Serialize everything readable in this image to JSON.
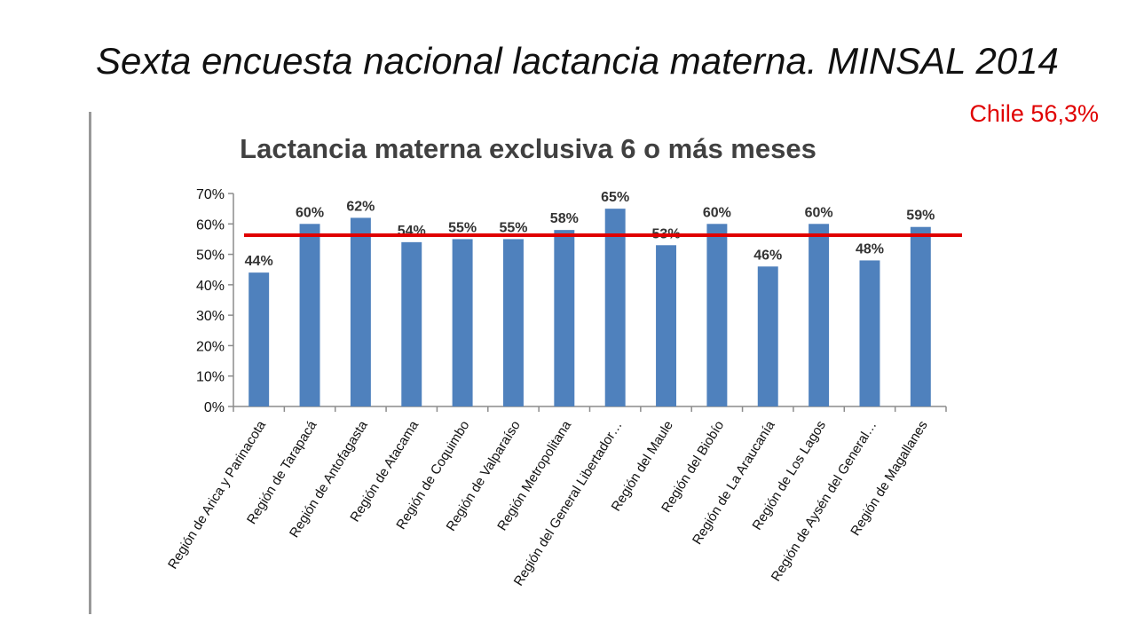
{
  "slide": {
    "title": "Sexta encuesta nacional lactancia materna.  MINSAL 2014",
    "reference_note": "Chile 56,3%",
    "reference_color": "#e00000"
  },
  "chart_data": {
    "type": "bar",
    "title": "Lactancia materna exclusiva 6 o más meses",
    "xlabel": "",
    "ylabel": "",
    "ylim": [
      0,
      70
    ],
    "y_ticks": [
      0,
      10,
      20,
      30,
      40,
      50,
      60,
      70
    ],
    "y_tick_labels": [
      "0%",
      "10%",
      "20%",
      "30%",
      "40%",
      "50%",
      "60%",
      "70%"
    ],
    "categories": [
      "Región de Arica y Parinacota",
      "Región de Tarapacá",
      "Región de Antofagasta",
      "Región de Atacama",
      "Región de Coquimbo",
      "Región de Valparaíso",
      "Región Metropolitana",
      "Región del General Libertador…",
      "Región del Maule",
      "Región del Biobío",
      "Región de La Araucanía",
      "Región de Los Lagos",
      "Región de Aysén del General…",
      "Región de Magallanes"
    ],
    "values": [
      44,
      60,
      62,
      54,
      55,
      55,
      58,
      65,
      53,
      60,
      46,
      60,
      48,
      59
    ],
    "data_labels": [
      "44%",
      "60%",
      "62%",
      "54%",
      "55%",
      "55%",
      "58%",
      "65%",
      "53%",
      "60%",
      "46%",
      "60%",
      "48%",
      "59%"
    ],
    "reference_line": {
      "value": 56.3,
      "color": "#e00000"
    },
    "bar_color": "#4f81bd",
    "grid": false,
    "legend": "none"
  }
}
